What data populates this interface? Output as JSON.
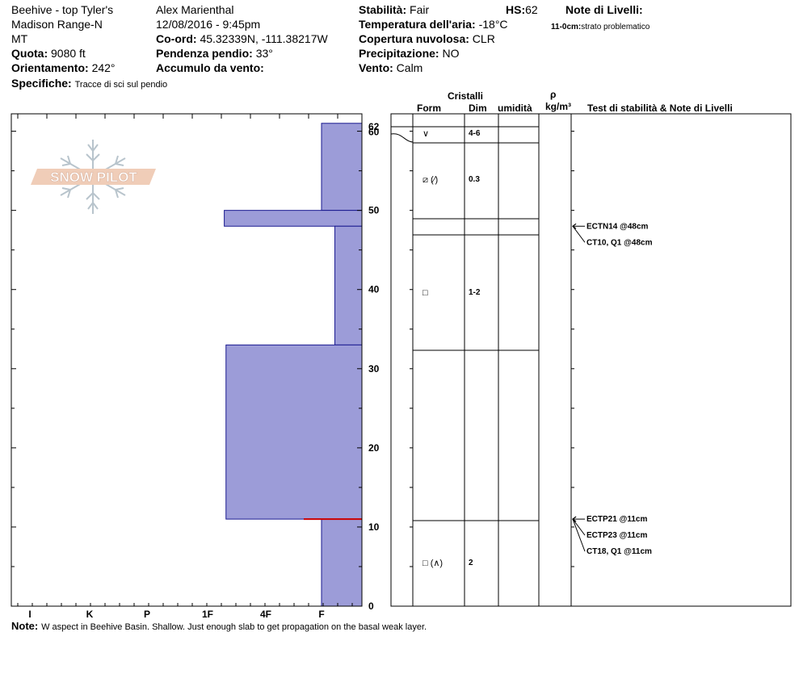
{
  "header": {
    "location": "Beehive - top Tyler's",
    "range": "Madison Range-N",
    "state": "MT",
    "elevation_label": "Quota:",
    "elevation_value": "9080 ft",
    "aspect_label": "Orientamento:",
    "aspect_value": "242°",
    "specifics_label": "Specifiche:",
    "specifics_value": "Tracce di sci sul pendio",
    "observer": "Alex Marienthal",
    "datetime": "12/08/2016 - 9:45pm",
    "coord_label": "Co-ord:",
    "coord_value": "45.32339N, -111.38217W",
    "slope_label": "Pendenza pendio:",
    "slope_value": "33°",
    "wind_loading_label": "Accumulo da vento:",
    "wind_loading_value": "",
    "stability_label": "Stabilità:",
    "stability_value": "Fair",
    "hs_label": "HS:",
    "hs_value": "62",
    "air_temp_label": "Temperatura dell'aria:",
    "air_temp_value": "-18°C",
    "cloud_label": "Copertura nuvolosa:",
    "cloud_value": "CLR",
    "precip_label": "Precipitazione:",
    "precip_value": "NO",
    "wind_label": "Vento:",
    "wind_value": "Calm",
    "layer_notes_label": "Note di Livelli:",
    "layer_note_depth": "11-0cm:",
    "layer_note_text": "strato problematico"
  },
  "logo_text": "SNOW PILOT",
  "columns": {
    "crystals": "Cristalli",
    "form": "Form",
    "dim": "Dim",
    "moisture": "umidità",
    "rho": "ρ",
    "density_unit": "kg/m³",
    "tests": "Test di stabilità & Note di Livelli"
  },
  "note_label": "Note:",
  "note_text": "W aspect in Beehive Basin. Shallow. Just enough slab to get propagation on the basal weak layer.",
  "colors": {
    "hardness_fill": "#9c9cd8",
    "hardness_stroke": "#1a1a90",
    "weak_layer": "#cc0000"
  },
  "chart_data": {
    "type": "snow-profile",
    "depth_unit": "cm",
    "ylim": [
      0,
      62
    ],
    "y_ticks": [
      0,
      10,
      20,
      30,
      40,
      50,
      60,
      62
    ],
    "hardness_scale": [
      "I",
      "K",
      "P",
      "1F",
      "4F",
      "F"
    ],
    "hardness_profile": [
      {
        "top": 62,
        "bottom": 61,
        "hardness_index": 0.35
      },
      {
        "top": 61,
        "bottom": 50,
        "hardness_index": 1
      },
      {
        "top": 50,
        "bottom": 48,
        "hardness_index": 2.7
      },
      {
        "top": 48,
        "bottom": 33,
        "hardness_index": 0.67
      },
      {
        "top": 33,
        "bottom": 11,
        "hardness_index": 2.67
      },
      {
        "top": 11,
        "bottom": 0,
        "hardness_index": 1
      }
    ],
    "weak_layer_depth": 11,
    "layer_boundaries": [
      62,
      61,
      50,
      48,
      33,
      11,
      0
    ],
    "layers": [
      {
        "top": 62,
        "bottom": 60,
        "form": "∨",
        "size": "4-6"
      },
      {
        "top": 60,
        "bottom": 50,
        "form": "⧄ (⁄)",
        "size": "0.3"
      },
      {
        "top": 48,
        "bottom": 33,
        "form": "□",
        "size": "1-2"
      },
      {
        "top": 11,
        "bottom": 0,
        "form": "□ (∧)",
        "size": "2"
      }
    ],
    "tests": [
      {
        "label": "ECTN14 @48cm",
        "depth": 48,
        "offset": 0
      },
      {
        "label": "CT10, Q1 @48cm",
        "depth": 48,
        "offset": 1
      },
      {
        "label": "ECTP21 @11cm",
        "depth": 11,
        "offset": 0
      },
      {
        "label": "ECTP23 @11cm",
        "depth": 11,
        "offset": 1
      },
      {
        "label": "CT18, Q1 @11cm",
        "depth": 11,
        "offset": 2
      }
    ],
    "temperature_profile": [
      {
        "depth": 62,
        "temp": 0
      },
      {
        "depth": 61,
        "temp": 0
      },
      {
        "depth": 60,
        "temp": -2
      }
    ]
  }
}
